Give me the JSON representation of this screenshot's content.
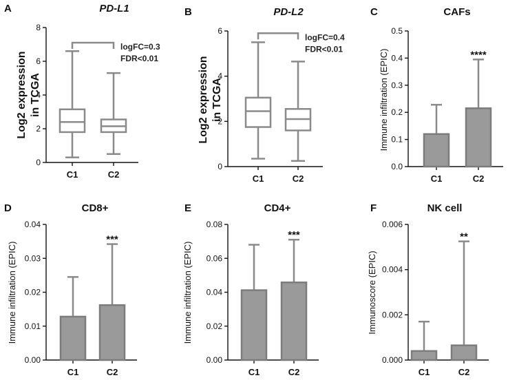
{
  "chart_data": [
    {
      "panel": "A",
      "type": "box",
      "title": "PD-L1",
      "title_italic": true,
      "ylabel": [
        "Log2 expression",
        "in TCGA"
      ],
      "ylim": [
        0,
        8
      ],
      "yticks": [
        0,
        2,
        4,
        6,
        8
      ],
      "ytick_labels": [
        "0",
        "2",
        "4",
        "6",
        "8"
      ],
      "categories": [
        "C1",
        "C2"
      ],
      "boxes": [
        {
          "min": 0.3,
          "q1": 1.8,
          "median": 2.4,
          "q3": 3.15,
          "max": 6.6
        },
        {
          "min": 0.5,
          "q1": 1.8,
          "median": 2.15,
          "q3": 2.55,
          "max": 5.3
        }
      ],
      "annotation": [
        "logFC=0.3",
        "FDR<0.01"
      ],
      "bracket_y": 7.1
    },
    {
      "panel": "B",
      "type": "box",
      "title": "PD-L2",
      "title_italic": true,
      "ylabel": [
        "Log2 expression",
        "in TCGA"
      ],
      "ylim": [
        0,
        6
      ],
      "yticks": [
        0,
        2,
        4,
        6
      ],
      "ytick_labels": [
        "0",
        "2",
        "4",
        "6"
      ],
      "categories": [
        "C1",
        "C2"
      ],
      "boxes": [
        {
          "min": 0.35,
          "q1": 1.75,
          "median": 2.45,
          "q3": 3.05,
          "max": 5.5
        },
        {
          "min": 0.25,
          "q1": 1.6,
          "median": 2.1,
          "q3": 2.55,
          "max": 4.65
        }
      ],
      "annotation": [
        "logFC=0.4",
        "FDR<0.01"
      ],
      "bracket_y": 5.9
    },
    {
      "panel": "C",
      "type": "bar",
      "title": "CAFs",
      "title_italic": false,
      "ylabel": [
        "Immune infiltration (EPIC)"
      ],
      "ylim": [
        0,
        0.5
      ],
      "yticks": [
        0,
        0.1,
        0.2,
        0.3,
        0.4,
        0.5
      ],
      "ytick_labels": [
        "0.0",
        "0.1",
        "0.2",
        "0.3",
        "0.4",
        "0.5"
      ],
      "categories": [
        "C1",
        "C2"
      ],
      "values": [
        0.12,
        0.215
      ],
      "errors": [
        0.228,
        0.395
      ],
      "significance": "****"
    },
    {
      "panel": "D",
      "type": "bar",
      "title": "CD8+",
      "title_italic": false,
      "ylabel": [
        "Immune infiltration (EPIC)"
      ],
      "ylim": [
        0,
        0.04
      ],
      "yticks": [
        0,
        0.01,
        0.02,
        0.03,
        0.04
      ],
      "ytick_labels": [
        "0.00",
        "0.01",
        "0.02",
        "0.03",
        "0.04"
      ],
      "categories": [
        "C1",
        "C2"
      ],
      "values": [
        0.0128,
        0.0162
      ],
      "errors": [
        0.0245,
        0.0342
      ],
      "significance": "***"
    },
    {
      "panel": "E",
      "type": "bar",
      "title": "CD4+",
      "title_italic": false,
      "ylabel": [
        "Immune infiltration (EPIC)"
      ],
      "ylim": [
        0,
        0.08
      ],
      "yticks": [
        0,
        0.02,
        0.04,
        0.06,
        0.08
      ],
      "ytick_labels": [
        "0.00",
        "0.02",
        "0.04",
        "0.06",
        "0.08"
      ],
      "categories": [
        "C1",
        "C2"
      ],
      "values": [
        0.0412,
        0.0458
      ],
      "errors": [
        0.068,
        0.071
      ],
      "significance": "***"
    },
    {
      "panel": "F",
      "type": "bar",
      "title": "NK cell",
      "title_italic": false,
      "ylabel": [
        "Immunoscore (EPIC)"
      ],
      "ylim": [
        0,
        0.006
      ],
      "yticks": [
        0,
        0.002,
        0.004,
        0.006
      ],
      "ytick_labels": [
        "0.000",
        "0.002",
        "0.004",
        "0.006"
      ],
      "categories": [
        "C1",
        "C2"
      ],
      "values": [
        0.0004,
        0.00065
      ],
      "errors": [
        0.0017,
        0.00525
      ],
      "significance": "**"
    }
  ]
}
